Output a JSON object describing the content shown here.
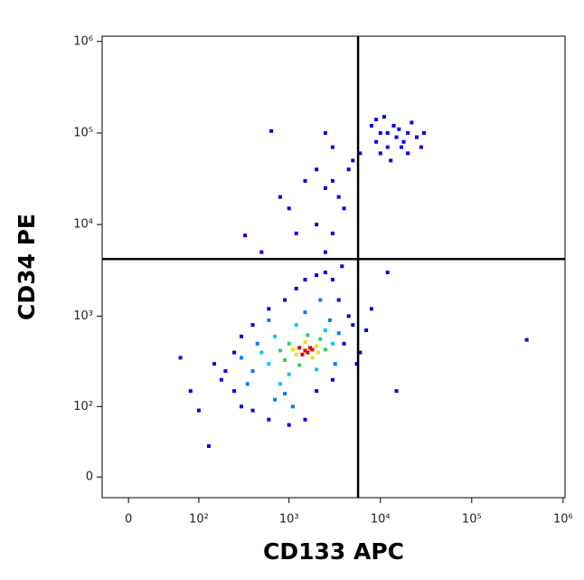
{
  "chart_data": {
    "type": "scatter",
    "xlabel": "CD133 APC",
    "ylabel": "CD34 PE",
    "xscale": "biexponential",
    "yscale": "biexponential",
    "xlim": [
      -25,
      1050000
    ],
    "ylim": [
      -19,
      1140000
    ],
    "xticks": [
      0,
      {
        "value": 100,
        "label": "10²"
      },
      {
        "value": 1000,
        "label": "10³"
      },
      {
        "value": 10000,
        "label": "10⁴"
      },
      {
        "value": 100000,
        "label": "10⁵"
      },
      {
        "value": 1000000,
        "label": "10⁶"
      }
    ],
    "yticks": [
      0,
      {
        "value": 100,
        "label": "10²"
      },
      {
        "value": 1000,
        "label": "10³"
      },
      {
        "value": 10000,
        "label": "10⁴"
      },
      {
        "value": 100000,
        "label": "10⁵"
      },
      {
        "value": 1000000,
        "label": "10⁶"
      }
    ],
    "gates": {
      "x": 5700,
      "y": 4200
    },
    "series": [
      {
        "color": "#0000e6",
        "x": [
          200,
          250,
          300,
          150,
          180,
          400,
          600,
          1000,
          1500,
          2000,
          3000,
          4000,
          4500,
          3500,
          3000,
          2500,
          2000,
          1500,
          1200,
          900,
          600,
          400,
          300,
          250,
          5000,
          5500,
          3800,
          2500,
          3000,
          2000,
          4000,
          3500,
          2500,
          3000,
          4500,
          5000,
          2000,
          1500,
          1200,
          1000,
          6000,
          3000,
          2500,
          9000,
          10000,
          12000,
          15000,
          14000,
          11000,
          18000,
          20000,
          25000,
          16000,
          13000,
          8000,
          22000,
          30000,
          10000,
          17000,
          12000,
          9000,
          20000,
          28000,
          60,
          80,
          100,
          130,
          400000,
          15000,
          12000,
          7000,
          8000,
          6000,
          500,
          800,
          330,
          640
        ],
        "y": [
          250,
          150,
          100,
          300,
          200,
          90,
          70,
          60,
          70,
          150,
          200,
          500,
          1000,
          1500,
          2500,
          3000,
          2800,
          2500,
          2000,
          1500,
          1200,
          800,
          600,
          400,
          800,
          300,
          3500,
          5000,
          8000,
          10000,
          15000,
          20000,
          25000,
          30000,
          40000,
          50000,
          40000,
          30000,
          8000,
          15000,
          60000,
          70000,
          100000,
          80000,
          100000,
          70000,
          90000,
          120000,
          150000,
          80000,
          60000,
          90000,
          110000,
          50000,
          120000,
          130000,
          100000,
          60000,
          70000,
          100000,
          140000,
          100000,
          70000,
          350,
          150,
          90,
          30,
          550,
          150,
          3000,
          700,
          1200,
          400,
          5000,
          20000,
          7600,
          105000
        ]
      },
      {
        "color": "#0078ff",
        "x": [
          400,
          450,
          900,
          2800,
          3200,
          300,
          1500,
          600,
          2200,
          700,
          3500,
          350,
          1100
        ],
        "y": [
          250,
          500,
          140,
          900,
          300,
          350,
          1100,
          900,
          1500,
          120,
          650,
          180,
          100
        ]
      },
      {
        "color": "#00c8f0",
        "x": [
          600,
          700,
          2500,
          1000,
          3000,
          500,
          1200,
          2000,
          800
        ],
        "y": [
          300,
          600,
          700,
          230,
          500,
          400,
          800,
          260,
          180
        ]
      },
      {
        "color": "#30d060",
        "x": [
          900,
          1000,
          2200,
          1300,
          2500,
          800,
          1600
        ],
        "y": [
          330,
          500,
          560,
          290,
          430,
          420,
          620
        ]
      },
      {
        "color": "#f0e000",
        "x": [
          1200,
          2000,
          1500,
          1800,
          1100,
          2100
        ],
        "y": [
          380,
          470,
          520,
          350,
          430,
          400
        ]
      },
      {
        "color": "#e00000",
        "x": [
          1500,
          1700,
          1400,
          1600,
          1800,
          1300
        ],
        "y": [
          420,
          450,
          380,
          400,
          430,
          450
        ]
      }
    ]
  }
}
